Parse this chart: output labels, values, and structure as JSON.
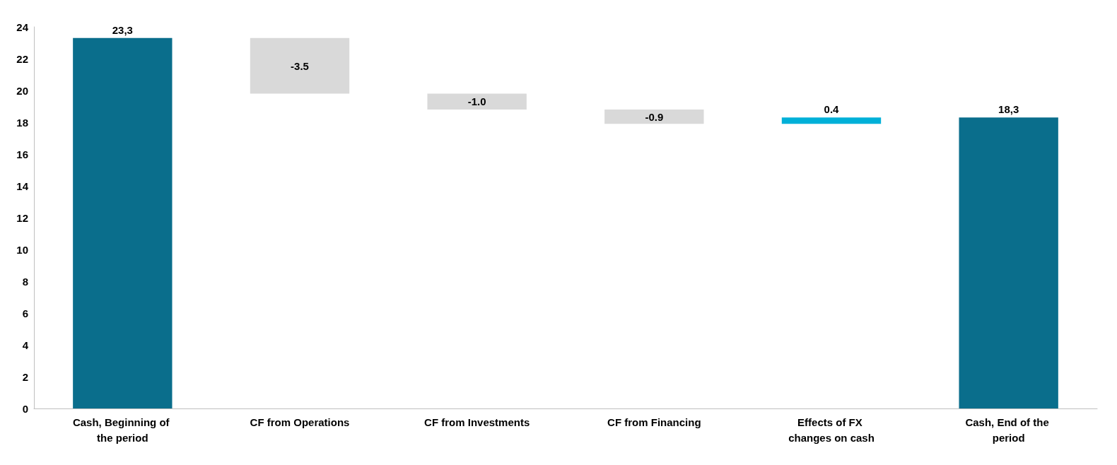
{
  "chart_data": {
    "type": "bar",
    "categories": [
      "Cash, Beginning of the period",
      "CF from Operations",
      "CF from Investments",
      "CF from Financing",
      "Effects of FX changes on cash",
      "Cash, End of the period"
    ],
    "values": [
      23.3,
      -3.5,
      -1.0,
      -0.9,
      0.4,
      18.3
    ],
    "base": [
      0,
      23.3,
      19.8,
      18.8,
      17.9,
      0
    ],
    "colors": [
      "#0a6e8c",
      "#d9d9d9",
      "#d9d9d9",
      "#d9d9d9",
      "#00b0d8",
      "#0a6e8c"
    ],
    "value_labels": [
      "23,3",
      "-3.5",
      "-1.0",
      "-0.9",
      "0.4",
      "18,3"
    ],
    "ylim": [
      0,
      24
    ],
    "yticks": [
      0,
      2,
      4,
      6,
      8,
      10,
      12,
      14,
      16,
      18,
      20,
      22,
      24
    ],
    "grid": false
  }
}
